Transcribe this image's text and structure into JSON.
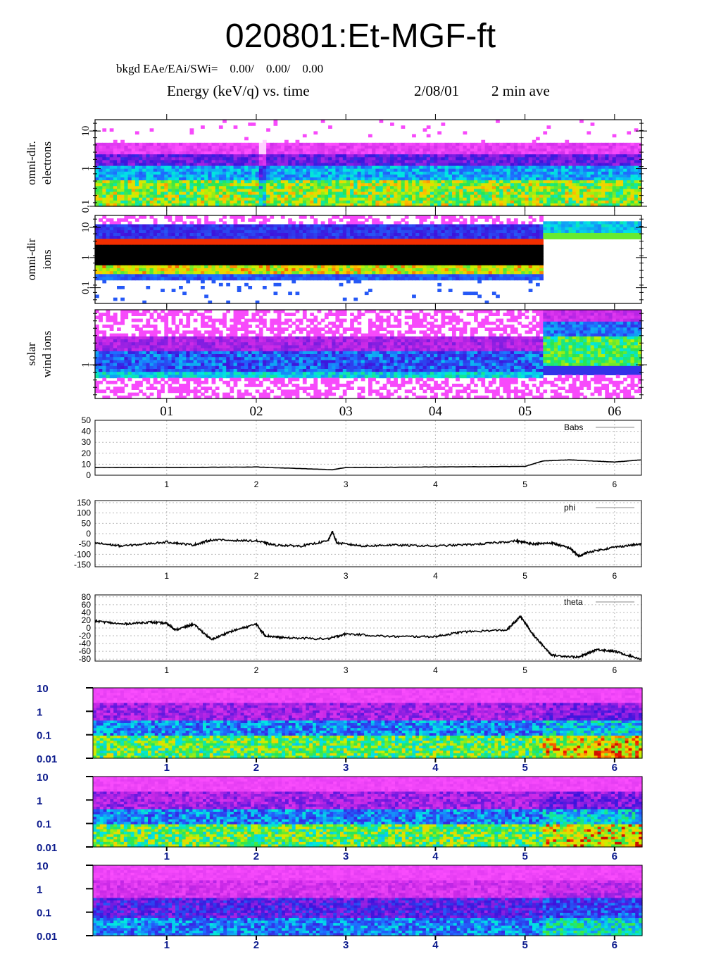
{
  "page_title": "020801:Et-MGF-ft",
  "header": {
    "bkgd_line": "bkgd EAe/EAi/SWi=    0.00/    0.00/    0.00",
    "plot_title": "Energy (keV/q) vs. time",
    "date": "2/08/01",
    "averaging": "2 min ave"
  },
  "chart_data": [
    {
      "type": "heatmap",
      "ylabel": "omni-dir. electrons",
      "ylog": true,
      "ylim": [
        0.1,
        20
      ],
      "yticks": [
        "10",
        "1",
        "0.1"
      ],
      "xticks": [
        "01",
        "02",
        "03",
        "04",
        "05",
        "06"
      ],
      "x_range_hours": [
        0.2,
        6.3
      ]
    },
    {
      "type": "heatmap",
      "ylabel": "omni-dir ions",
      "ylog": true,
      "ylim": [
        0.03,
        25
      ],
      "yticks": [
        "10",
        "1",
        "0.1"
      ],
      "xticks": [
        "01",
        "02",
        "03",
        "04",
        "05",
        "06"
      ],
      "x_range_hours": [
        0.2,
        6.3
      ]
    },
    {
      "type": "heatmap",
      "ylabel": "solar wind ions",
      "ylog": true,
      "yticks": [
        "1"
      ],
      "xticks": [
        "01",
        "02",
        "03",
        "04",
        "05",
        "06"
      ],
      "x_range_hours": [
        0.2,
        6.3
      ]
    },
    {
      "type": "line",
      "series": [
        {
          "name": "Babs",
          "x": [
            0.2,
            1.0,
            2.0,
            2.85,
            3.0,
            4.0,
            5.0,
            5.2,
            5.5,
            6.0,
            6.3
          ],
          "y": [
            7,
            7,
            7.5,
            5,
            7,
            7.5,
            8,
            13,
            14,
            12,
            14
          ]
        }
      ],
      "ylim": [
        0,
        50
      ],
      "yticks": [
        "50",
        "40",
        "30",
        "20",
        "10",
        "0"
      ],
      "xticks": [
        "1",
        "2",
        "3",
        "4",
        "5",
        "6"
      ],
      "xlim": [
        0.2,
        6.3
      ],
      "grid": true
    },
    {
      "type": "line",
      "series": [
        {
          "name": "phi",
          "x": [
            0.2,
            0.5,
            1.0,
            1.3,
            1.5,
            2.0,
            2.2,
            2.5,
            2.8,
            2.85,
            2.9,
            3.2,
            3.5,
            4.0,
            4.5,
            4.9,
            5.1,
            5.3,
            5.5,
            5.6,
            5.7,
            6.0,
            6.3
          ],
          "y": [
            -45,
            -60,
            -40,
            -55,
            -30,
            -35,
            -55,
            -60,
            -35,
            10,
            -45,
            -60,
            -55,
            -60,
            -50,
            -35,
            -50,
            -45,
            -70,
            -110,
            -90,
            -65,
            -50
          ]
        }
      ],
      "ylim": [
        -160,
        160
      ],
      "yticks": [
        "150",
        "100",
        "50",
        "0",
        "-50",
        "-100",
        "-150"
      ],
      "xticks": [
        "1",
        "2",
        "3",
        "4",
        "5",
        "6"
      ],
      "xlim": [
        0.2,
        6.3
      ],
      "grid": true
    },
    {
      "type": "line",
      "series": [
        {
          "name": "theta",
          "x": [
            0.2,
            0.5,
            0.8,
            1.0,
            1.1,
            1.3,
            1.5,
            1.7,
            2.0,
            2.1,
            2.3,
            2.8,
            3.0,
            3.5,
            4.0,
            4.3,
            4.8,
            4.95,
            5.1,
            5.3,
            5.6,
            5.8,
            6.0,
            6.3
          ],
          "y": [
            18,
            10,
            15,
            12,
            -5,
            10,
            -30,
            -10,
            10,
            -20,
            -25,
            -28,
            -15,
            -22,
            -22,
            -10,
            -5,
            30,
            -20,
            -70,
            -75,
            -55,
            -60,
            -80
          ]
        }
      ],
      "ylim": [
        -85,
        85
      ],
      "yticks": [
        "80",
        "60",
        "40",
        "20",
        "0",
        "-20",
        "-40",
        "-60",
        "-80"
      ],
      "xticks": [
        "1",
        "2",
        "3",
        "4",
        "5",
        "6"
      ],
      "xlim": [
        0.2,
        6.3
      ],
      "grid": true
    },
    {
      "type": "heatmap",
      "ylog": true,
      "ylim": [
        0.01,
        10
      ],
      "yticks": [
        "10",
        "1",
        "0.1",
        "0.01"
      ],
      "xticks": [
        "1",
        "2",
        "3",
        "4",
        "5",
        "6"
      ],
      "x_range_hours": [
        0.2,
        6.3
      ]
    },
    {
      "type": "heatmap",
      "ylog": true,
      "ylim": [
        0.01,
        10
      ],
      "yticks": [
        "10",
        "1",
        "0.1",
        "0.01"
      ],
      "xticks": [
        "1",
        "2",
        "3",
        "4",
        "5",
        "6"
      ],
      "x_range_hours": [
        0.2,
        6.3
      ]
    },
    {
      "type": "heatmap",
      "ylog": true,
      "ylim": [
        0.01,
        10
      ],
      "yticks": [
        "10",
        "1",
        "0.1",
        "0.01"
      ],
      "xticks": [
        "1",
        "2",
        "3",
        "4",
        "5",
        "6"
      ],
      "x_range_hours": [
        0.2,
        6.3
      ]
    }
  ]
}
